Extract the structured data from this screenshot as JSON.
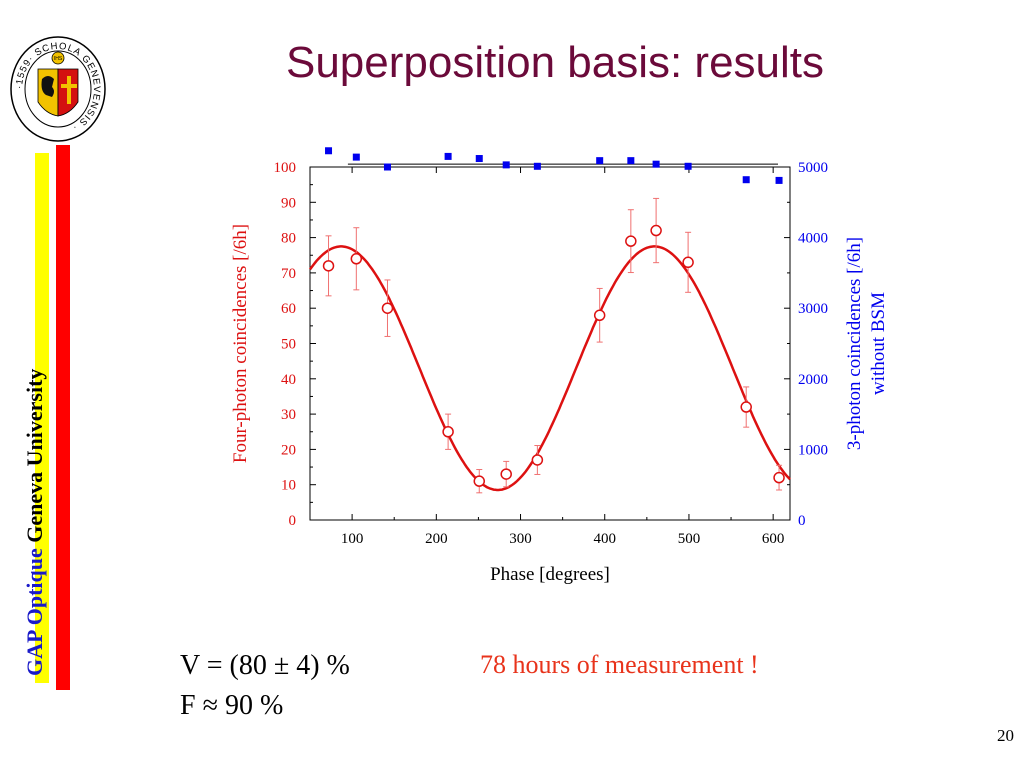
{
  "slide": {
    "title": "Superposition basis: results",
    "title_color": "#6b0a3a",
    "visibility": "V = (80 ± 4) %",
    "fidelity": "F ≈ 90 %",
    "note": "78 hours of measurement !",
    "note_color": "#e8331b",
    "page_number": "20"
  },
  "logo": {
    "seal_text": "·1559· SCHOLA GENEVENSIS ·",
    "seal_center_text": "IHS",
    "group_name": "GAP Optique",
    "university": "Geneva University",
    "group_color": "#1a1ac8",
    "stripe_yellow": "#ffff00",
    "stripe_red": "#ff0000"
  },
  "chart_data": {
    "type": "scatter",
    "xlabel": "Phase [degrees]",
    "ylabel": "Four-photon coincidences [/6h]",
    "y2label_line1": "3-photon coincidences [/6h]",
    "y2label_line2": "without BSM",
    "xlim": [
      50,
      620
    ],
    "ylim": [
      0,
      100
    ],
    "y2lim": [
      0,
      5000
    ],
    "xticks": [
      100,
      200,
      300,
      400,
      500,
      600
    ],
    "yticks": [
      0,
      10,
      20,
      30,
      40,
      50,
      60,
      70,
      80,
      90,
      100
    ],
    "y2ticks": [
      0,
      1000,
      2000,
      3000,
      4000,
      5000
    ],
    "series": [
      {
        "axis": "left",
        "color": "#dd1111",
        "marker": "open-circle",
        "points": [
          {
            "x": 72,
            "y": 72,
            "err": 8.5
          },
          {
            "x": 105,
            "y": 74,
            "err": 8.8
          },
          {
            "x": 142,
            "y": 60,
            "err": 8
          },
          {
            "x": 214,
            "y": 25,
            "err": 5
          },
          {
            "x": 251,
            "y": 11,
            "err": 3.3
          },
          {
            "x": 283,
            "y": 13,
            "err": 3.6
          },
          {
            "x": 320,
            "y": 17,
            "err": 4.1
          },
          {
            "x": 394,
            "y": 58,
            "err": 7.6
          },
          {
            "x": 431,
            "y": 79,
            "err": 8.9
          },
          {
            "x": 461,
            "y": 82,
            "err": 9.1
          },
          {
            "x": 499,
            "y": 73,
            "err": 8.5
          },
          {
            "x": 568,
            "y": 32,
            "err": 5.7
          },
          {
            "x": 607,
            "y": 12,
            "err": 3.5
          }
        ]
      },
      {
        "axis": "right",
        "color": "#0000ee",
        "marker": "filled-square",
        "points": [
          {
            "x": 72,
            "y": 5230
          },
          {
            "x": 105,
            "y": 5140
          },
          {
            "x": 142,
            "y": 5000
          },
          {
            "x": 214,
            "y": 5150
          },
          {
            "x": 251,
            "y": 5120
          },
          {
            "x": 283,
            "y": 5030
          },
          {
            "x": 320,
            "y": 5010
          },
          {
            "x": 394,
            "y": 5090
          },
          {
            "x": 431,
            "y": 5090
          },
          {
            "x": 461,
            "y": 5040
          },
          {
            "x": 499,
            "y": 5010
          },
          {
            "x": 568,
            "y": 4820
          },
          {
            "x": 607,
            "y": 4810
          }
        ]
      }
    ],
    "fit_curve": {
      "color": "#dd1111",
      "offset": 43,
      "amplitude": 34.5,
      "period": 372,
      "peak_phase": 87
    },
    "reference_line": {
      "y": 5040,
      "axis": "right",
      "color": "#000000"
    }
  }
}
